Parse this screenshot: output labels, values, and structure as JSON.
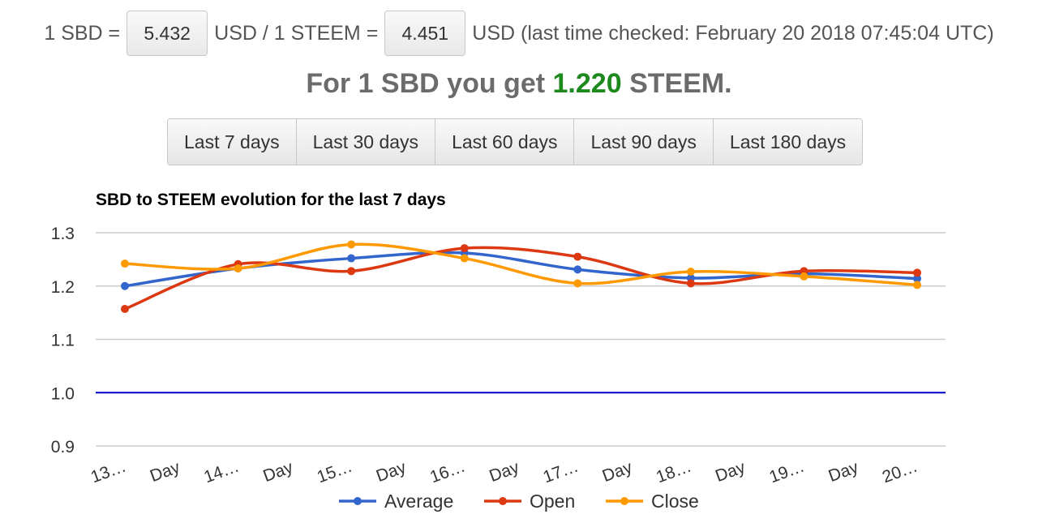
{
  "rates": {
    "sbd_prefix": "1 SBD =",
    "sbd_usd": "5.432",
    "mid_text": "USD / 1 STEEM =",
    "steem_usd": "4.451",
    "suffix_text": "USD (last time checked: February 20 2018 07:45:04 UTC)"
  },
  "result": {
    "prefix": "For 1 SBD you get",
    "value": "1.220",
    "suffix": "STEEM."
  },
  "range_buttons": [
    "Last 7 days",
    "Last 30 days",
    "Last 60 days",
    "Last 90 days",
    "Last 180 days"
  ],
  "chart_data": {
    "type": "line",
    "title": "SBD to STEEM evolution for the last 7 days",
    "categories": [
      "13…",
      "Day",
      "14…",
      "Day",
      "15…",
      "Day",
      "16…",
      "Day",
      "17…",
      "Day",
      "18…",
      "Day",
      "19…",
      "Day",
      "20…"
    ],
    "x": [
      0,
      1,
      2,
      3,
      4,
      5,
      6,
      7
    ],
    "series": [
      {
        "name": "Average",
        "color": "#3366cc",
        "values": [
          1.2,
          1.233,
          1.252,
          1.262,
          1.231,
          1.215,
          1.223,
          1.214
        ]
      },
      {
        "name": "Open",
        "color": "#dc3912",
        "values": [
          1.157,
          1.241,
          1.228,
          1.271,
          1.255,
          1.205,
          1.228,
          1.225
        ]
      },
      {
        "name": "Close",
        "color": "#ff9900",
        "values": [
          1.242,
          1.233,
          1.278,
          1.252,
          1.205,
          1.227,
          1.218,
          1.202
        ]
      }
    ],
    "reference_line": {
      "value": 1.0,
      "color": "#0000cc"
    },
    "yticks": [
      "0.9",
      "1.0",
      "1.1",
      "1.2",
      "1.3"
    ],
    "ylim": [
      0.9,
      1.3
    ],
    "grid": true,
    "legend": "bottom"
  }
}
